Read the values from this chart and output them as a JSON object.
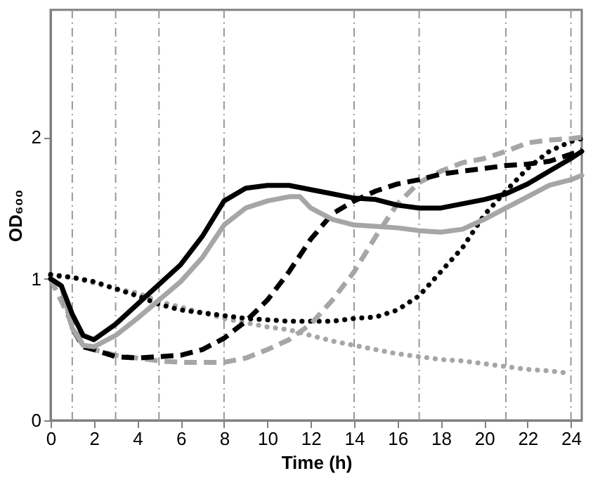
{
  "chart_data": {
    "type": "line",
    "xlabel": "Time (h)",
    "ylabel": "OD₆₀₀",
    "xlim": [
      0,
      24.5
    ],
    "xticks": [
      0,
      2,
      4,
      6,
      8,
      10,
      12,
      14,
      16,
      18,
      20,
      22,
      24
    ],
    "ylim": [
      0,
      2.9
    ],
    "yticks": [
      0,
      1,
      2
    ],
    "grid": false,
    "marker": "none",
    "ref_lines": [
      {
        "axis": "x",
        "value": 1,
        "color": "#999999",
        "line_style": "dashdot"
      },
      {
        "axis": "x",
        "value": 3,
        "color": "#999999",
        "line_style": "dashdot"
      },
      {
        "axis": "x",
        "value": 5,
        "color": "#999999",
        "line_style": "dashdot"
      },
      {
        "axis": "x",
        "value": 8,
        "color": "#999999",
        "line_style": "dashdot"
      },
      {
        "axis": "x",
        "value": 14,
        "color": "#999999",
        "line_style": "dashdot"
      },
      {
        "axis": "x",
        "value": 17,
        "color": "#999999",
        "line_style": "dashdot"
      },
      {
        "axis": "x",
        "value": 21,
        "color": "#999999",
        "line_style": "dashdot"
      },
      {
        "axis": "x",
        "value": 24,
        "color": "#999999",
        "line_style": "dashdot"
      }
    ],
    "series": [
      {
        "color": "#a6a6a6",
        "line_style": "dotted",
        "x": [
          0,
          1,
          2,
          3,
          4,
          5,
          6,
          7,
          8,
          9,
          10,
          11,
          12,
          13,
          14,
          15,
          16,
          17,
          18,
          19,
          20,
          21,
          22,
          23,
          24
        ],
        "values": [
          1.02,
          1.01,
          0.97,
          0.93,
          0.9,
          0.84,
          0.8,
          0.76,
          0.72,
          0.69,
          0.66,
          0.64,
          0.6,
          0.56,
          0.53,
          0.5,
          0.47,
          0.45,
          0.43,
          0.42,
          0.4,
          0.38,
          0.36,
          0.35,
          0.33
        ]
      },
      {
        "color": "#000000",
        "line_style": "dotted",
        "x": [
          0,
          1,
          2,
          3,
          4,
          5,
          6,
          7,
          8,
          9,
          10,
          11,
          12,
          13,
          14,
          15,
          16,
          17,
          18,
          19,
          20,
          21,
          22,
          23,
          24,
          24.5
        ],
        "values": [
          1.03,
          1.01,
          0.98,
          0.93,
          0.88,
          0.82,
          0.78,
          0.76,
          0.74,
          0.72,
          0.71,
          0.7,
          0.7,
          0.7,
          0.72,
          0.73,
          0.78,
          0.88,
          1.05,
          1.22,
          1.45,
          1.62,
          1.78,
          1.9,
          1.97,
          1.99
        ]
      },
      {
        "color": "#a6a6a6",
        "line_style": "dashed",
        "x": [
          0,
          1,
          1.5,
          2,
          3,
          4,
          5,
          6,
          7,
          8,
          9,
          10,
          11,
          12,
          13,
          14,
          15,
          16,
          17,
          18,
          19,
          20,
          21,
          22,
          23,
          24,
          24.5
        ],
        "values": [
          1.0,
          0.68,
          0.53,
          0.5,
          0.46,
          0.44,
          0.42,
          0.41,
          0.41,
          0.41,
          0.44,
          0.5,
          0.57,
          0.68,
          0.85,
          1.05,
          1.3,
          1.53,
          1.68,
          1.76,
          1.82,
          1.85,
          1.9,
          1.96,
          1.98,
          1.99,
          2.0
        ]
      },
      {
        "color": "#000000",
        "line_style": "dashed",
        "x": [
          0,
          0.5,
          1,
          1.5,
          2,
          3,
          4,
          5,
          6,
          7,
          8,
          9,
          10,
          11,
          12,
          13,
          14,
          15,
          16,
          17,
          18,
          19,
          20,
          21,
          22,
          23,
          24,
          24.5
        ],
        "values": [
          1.0,
          0.95,
          0.65,
          0.52,
          0.5,
          0.45,
          0.44,
          0.45,
          0.46,
          0.5,
          0.58,
          0.7,
          0.85,
          1.05,
          1.28,
          1.46,
          1.55,
          1.62,
          1.67,
          1.7,
          1.74,
          1.76,
          1.78,
          1.8,
          1.81,
          1.83,
          1.88,
          1.91
        ]
      },
      {
        "color": "#a6a6a6",
        "line_style": "solid",
        "x": [
          0,
          0.5,
          1,
          1.5,
          2,
          3,
          4,
          5,
          6,
          7,
          8,
          9,
          10,
          11,
          11.5,
          12,
          13,
          14,
          15,
          16,
          17,
          18,
          19,
          20,
          21,
          22,
          23,
          24,
          24.5
        ],
        "values": [
          1.0,
          0.95,
          0.65,
          0.53,
          0.52,
          0.6,
          0.72,
          0.85,
          0.98,
          1.15,
          1.38,
          1.5,
          1.55,
          1.58,
          1.58,
          1.5,
          1.42,
          1.38,
          1.37,
          1.36,
          1.34,
          1.33,
          1.35,
          1.42,
          1.5,
          1.58,
          1.66,
          1.7,
          1.73
        ]
      },
      {
        "color": "#000000",
        "line_style": "solid",
        "x": [
          0,
          0.5,
          1,
          1.5,
          2,
          3,
          4,
          5,
          6,
          7,
          8,
          9,
          10,
          11,
          12,
          13,
          14,
          15,
          16,
          17,
          18,
          19,
          20,
          21,
          22,
          23,
          24,
          24.5
        ],
        "values": [
          1.0,
          0.95,
          0.75,
          0.6,
          0.57,
          0.68,
          0.82,
          0.96,
          1.1,
          1.3,
          1.55,
          1.64,
          1.66,
          1.66,
          1.63,
          1.6,
          1.57,
          1.56,
          1.52,
          1.5,
          1.5,
          1.53,
          1.56,
          1.6,
          1.67,
          1.76,
          1.85,
          1.9
        ]
      }
    ]
  }
}
